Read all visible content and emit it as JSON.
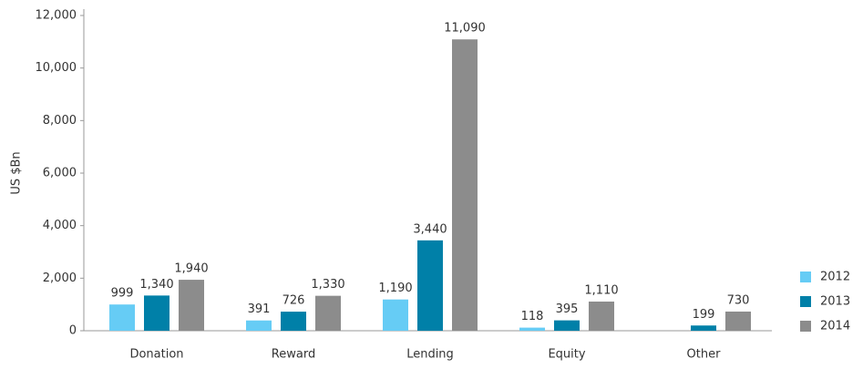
{
  "chart_data": {
    "type": "bar",
    "y_label": "US $Bn",
    "categories": [
      "Donation",
      "Reward",
      "Lending",
      "Equity",
      "Other"
    ],
    "series": [
      {
        "name": "2012",
        "color": "#66ccf5",
        "values": [
          999,
          391,
          1190,
          118,
          null
        ],
        "value_labels": [
          "999",
          "391",
          "1,190",
          "118",
          null
        ]
      },
      {
        "name": "2013",
        "color": "#0080a8",
        "values": [
          1340,
          726,
          3440,
          395,
          199
        ],
        "value_labels": [
          "1,340",
          "726",
          "3,440",
          "395",
          "199"
        ]
      },
      {
        "name": "2014",
        "color": "#8c8c8c",
        "values": [
          1940,
          1330,
          11090,
          1110,
          730
        ],
        "value_labels": [
          "1,940",
          "1,330",
          "11,090",
          "1,110",
          "730"
        ]
      }
    ],
    "ylim": [
      0,
      12000
    ],
    "yticks": [
      0,
      {
        "value": 2000,
        "label": "2,000"
      },
      {
        "value": 4000,
        "label": "4,000"
      },
      {
        "value": 6000,
        "label": "6,000"
      },
      {
        "value": 8000,
        "label": "8,000"
      },
      {
        "value": 10000,
        "label": "10,000"
      },
      {
        "value": 12000,
        "label": "12,000"
      }
    ],
    "legend": "right"
  }
}
